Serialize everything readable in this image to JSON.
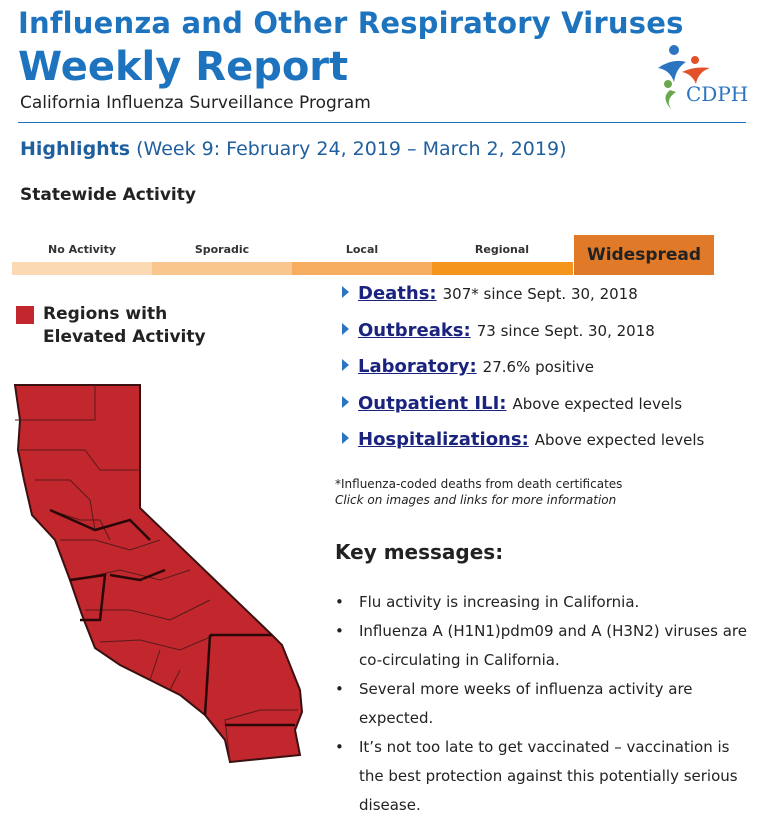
{
  "header": {
    "title": "Influenza and Other Respiratory Viruses",
    "report": "Weekly Report",
    "subtitle": "California Influenza Surveillance Program",
    "logo": "CDPH"
  },
  "highlights": {
    "label": "Highlights",
    "week": "(Week 9: February 24, 2019 – March 2, 2019)"
  },
  "statewide": {
    "title": "Statewide Activity",
    "levels": [
      "No Activity",
      "Sporadic",
      "Local",
      "Regional",
      "Widespread"
    ],
    "legend": "Regions with Elevated Activity"
  },
  "indicators": [
    {
      "link": "Deaths:",
      "text": "307* since Sept. 30, 2018"
    },
    {
      "link": "Outbreaks:",
      "text": "73 since Sept. 30, 2018"
    },
    {
      "link": "Laboratory:",
      "text": "27.6% positive"
    },
    {
      "link": "Outpatient ILI:",
      "text": "Above expected levels"
    },
    {
      "link": "Hospitalizations:",
      "text": "Above expected levels"
    }
  ],
  "footnote": "*Influenza-coded deaths from death certificates",
  "note": "Click on images and links for more information",
  "key_messages": {
    "title": "Key messages:",
    "items": [
      "Flu activity is increasing in California.",
      "Influenza A (H1N1)pdm09 and A (H3N2) viruses are co-circulating in California.",
      "Several more weeks of influenza activity are expected.",
      "It’s not too late to get vaccinated – vaccination is the best protection against this potentially serious disease."
    ]
  }
}
